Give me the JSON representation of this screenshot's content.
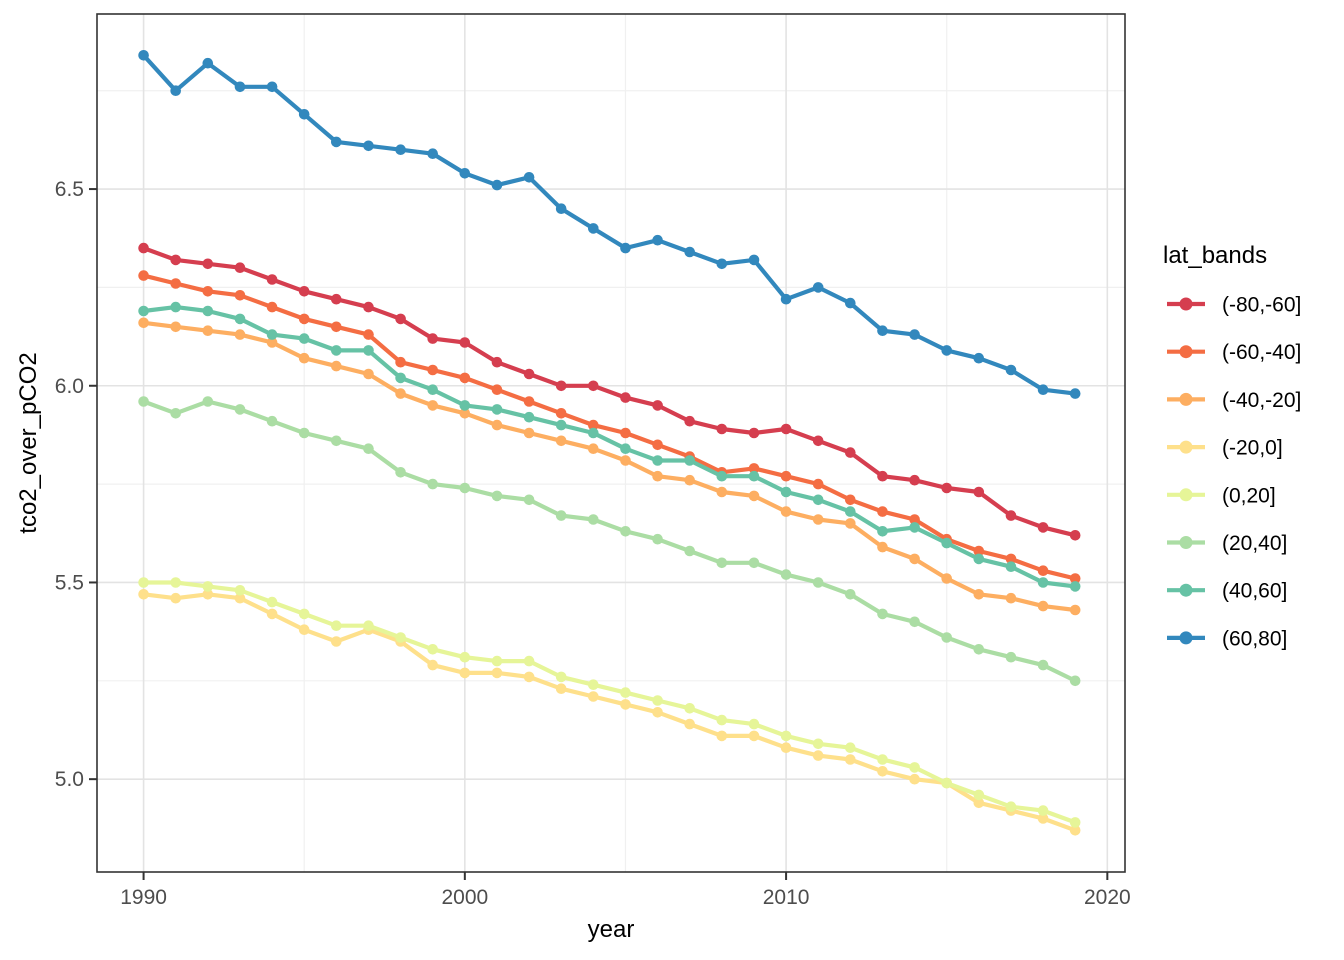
{
  "figure": {
    "title": "",
    "y_axis_title": "tco2_over_pCO2",
    "x_axis_title": "year",
    "style": {
      "background": "#ffffff",
      "panel_border": "#333333",
      "grid_major": "#e3e3e3",
      "grid_minor": "#f0f0f0",
      "tick_mark": "#333333",
      "tick_label_color": "#4d4d4d",
      "axis_title_color": "#000000",
      "legend_text_color": "#000000"
    }
  },
  "chart_data": {
    "type": "line",
    "title": "",
    "xlabel": "year",
    "ylabel": "tco2_over_pCO2",
    "grid": true,
    "legend_title": "lat_bands",
    "legend_position": "right",
    "xlim": [
      1988.55,
      2020.55
    ],
    "ylim": [
      4.764,
      6.945
    ],
    "x_ticks": [
      1990,
      2000,
      2010,
      2020
    ],
    "x_minor_ticks": [
      1995,
      2005,
      2015
    ],
    "y_ticks": [
      5.0,
      5.5,
      6.0,
      6.5
    ],
    "y_tick_labels": [
      "5.0",
      "5.5",
      "6.0",
      "6.5"
    ],
    "y_minor_ticks": [
      5.25,
      5.75,
      6.25,
      6.75
    ],
    "x": [
      1990,
      1991,
      1992,
      1993,
      1994,
      1995,
      1996,
      1997,
      1998,
      1999,
      2000,
      2001,
      2002,
      2003,
      2004,
      2005,
      2006,
      2007,
      2008,
      2009,
      2010,
      2011,
      2012,
      2013,
      2014,
      2015,
      2016,
      2017,
      2018,
      2019
    ],
    "series": [
      {
        "name": "(-80,-60]",
        "color": "#d53e4f",
        "values": [
          6.35,
          6.32,
          6.31,
          6.3,
          6.27,
          6.24,
          6.22,
          6.2,
          6.17,
          6.12,
          6.11,
          6.06,
          6.03,
          6.0,
          6.0,
          5.97,
          5.95,
          5.91,
          5.89,
          5.88,
          5.89,
          5.86,
          5.83,
          5.77,
          5.76,
          5.74,
          5.73,
          5.67,
          5.64,
          5.62
        ]
      },
      {
        "name": "(-60,-40]",
        "color": "#f46d43",
        "values": [
          6.28,
          6.26,
          6.24,
          6.23,
          6.2,
          6.17,
          6.15,
          6.13,
          6.06,
          6.04,
          6.02,
          5.99,
          5.96,
          5.93,
          5.9,
          5.88,
          5.85,
          5.82,
          5.78,
          5.79,
          5.77,
          5.75,
          5.71,
          5.68,
          5.66,
          5.61,
          5.58,
          5.56,
          5.53,
          5.51
        ]
      },
      {
        "name": "(-40,-20]",
        "color": "#fdae61",
        "values": [
          6.16,
          6.15,
          6.14,
          6.13,
          6.11,
          6.07,
          6.05,
          6.03,
          5.98,
          5.95,
          5.93,
          5.9,
          5.88,
          5.86,
          5.84,
          5.81,
          5.77,
          5.76,
          5.73,
          5.72,
          5.68,
          5.66,
          5.65,
          5.59,
          5.56,
          5.51,
          5.47,
          5.46,
          5.44,
          5.43
        ]
      },
      {
        "name": "(-20,0]",
        "color": "#fee08b",
        "values": [
          5.47,
          5.46,
          5.47,
          5.46,
          5.42,
          5.38,
          5.35,
          5.38,
          5.35,
          5.29,
          5.27,
          5.27,
          5.26,
          5.23,
          5.21,
          5.19,
          5.17,
          5.14,
          5.11,
          5.11,
          5.08,
          5.06,
          5.05,
          5.02,
          5.0,
          4.99,
          4.94,
          4.92,
          4.9,
          4.87
        ]
      },
      {
        "name": "(0,20]",
        "color": "#e6f598",
        "values": [
          5.5,
          5.5,
          5.49,
          5.48,
          5.45,
          5.42,
          5.39,
          5.39,
          5.36,
          5.33,
          5.31,
          5.3,
          5.3,
          5.26,
          5.24,
          5.22,
          5.2,
          5.18,
          5.15,
          5.14,
          5.11,
          5.09,
          5.08,
          5.05,
          5.03,
          4.99,
          4.96,
          4.93,
          4.92,
          4.89
        ]
      },
      {
        "name": "(20,40]",
        "color": "#abdda4",
        "values": [
          5.96,
          5.93,
          5.96,
          5.94,
          5.91,
          5.88,
          5.86,
          5.84,
          5.78,
          5.75,
          5.74,
          5.72,
          5.71,
          5.67,
          5.66,
          5.63,
          5.61,
          5.58,
          5.55,
          5.55,
          5.52,
          5.5,
          5.47,
          5.42,
          5.4,
          5.36,
          5.33,
          5.31,
          5.29,
          5.25
        ]
      },
      {
        "name": "(40,60]",
        "color": "#66c2a5",
        "values": [
          6.19,
          6.2,
          6.19,
          6.17,
          6.13,
          6.12,
          6.09,
          6.09,
          6.02,
          5.99,
          5.95,
          5.94,
          5.92,
          5.9,
          5.88,
          5.84,
          5.81,
          5.81,
          5.77,
          5.77,
          5.73,
          5.71,
          5.68,
          5.63,
          5.64,
          5.6,
          5.56,
          5.54,
          5.5,
          5.49
        ]
      },
      {
        "name": "(60,80]",
        "color": "#3288bd",
        "values": [
          6.84,
          6.75,
          6.82,
          6.76,
          6.76,
          6.69,
          6.62,
          6.61,
          6.6,
          6.59,
          6.54,
          6.51,
          6.53,
          6.45,
          6.4,
          6.35,
          6.37,
          6.34,
          6.31,
          6.32,
          6.22,
          6.25,
          6.21,
          6.14,
          6.13,
          6.09,
          6.07,
          6.04,
          5.99,
          5.98
        ]
      }
    ]
  }
}
